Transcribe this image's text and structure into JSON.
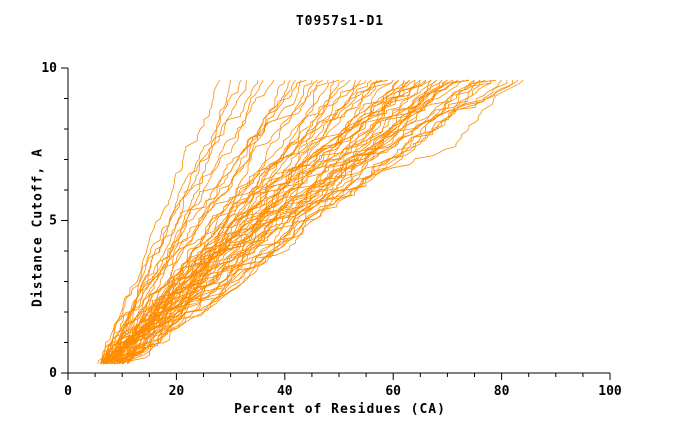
{
  "chart_data": {
    "type": "line",
    "title": "T0957s1-D1",
    "xlabel": "Percent of Residues (CA)",
    "ylabel": "Distance Cutoff, A",
    "xlim": [
      0,
      100
    ],
    "ylim": [
      0,
      10
    ],
    "x_ticks": [
      0,
      20,
      40,
      60,
      80,
      100
    ],
    "x_minor_step": 5,
    "y_ticks": [
      0,
      5,
      10
    ],
    "y_minor_step": 1,
    "line_color": "#ff8c00",
    "axis_color": "#000000",
    "background": "#ffffff",
    "legend": "none",
    "grid": false,
    "curve_y_start": 0.3,
    "curve_y_end": 9.6,
    "curves_note": "Each curve is [x_at_bottom, x_at_top, mid_fraction]: percent of residues at distance cutoff 0.3A, at 9.6A, and relative position of the x value reached at cutoff 5A.",
    "curves": [
      [
        6,
        28,
        0.5
      ],
      [
        5.5,
        30,
        0.55
      ],
      [
        6.5,
        32,
        0.48
      ],
      [
        7,
        33,
        0.52
      ],
      [
        6,
        35,
        0.45
      ],
      [
        8,
        36,
        0.5
      ],
      [
        7.5,
        38,
        0.42
      ],
      [
        6,
        40,
        0.55
      ],
      [
        9,
        41,
        0.5
      ],
      [
        7,
        42,
        0.46
      ],
      [
        8.5,
        43,
        0.52
      ],
      [
        6.5,
        44,
        0.4
      ],
      [
        10,
        45,
        0.5
      ],
      [
        7,
        46,
        0.44
      ],
      [
        8,
        47,
        0.55
      ],
      [
        6,
        48,
        0.38
      ],
      [
        9.5,
        49,
        0.5
      ],
      [
        7.5,
        50,
        0.45
      ],
      [
        11,
        51,
        0.52
      ],
      [
        6.5,
        52,
        0.4
      ],
      [
        8,
        53,
        0.48
      ],
      [
        7,
        54,
        0.55
      ],
      [
        10,
        55,
        0.42
      ],
      [
        6,
        56,
        0.5
      ],
      [
        9,
        57,
        0.45
      ],
      [
        7.5,
        58,
        0.52
      ],
      [
        8.5,
        58,
        0.38
      ],
      [
        6.5,
        59,
        0.48
      ],
      [
        11,
        60,
        0.55
      ],
      [
        7,
        60,
        0.42
      ],
      [
        9.5,
        61,
        0.5
      ],
      [
        6,
        61,
        0.45
      ],
      [
        8,
        62,
        0.52
      ],
      [
        7.5,
        62,
        0.4
      ],
      [
        10,
        63,
        0.48
      ],
      [
        6.5,
        63,
        0.55
      ],
      [
        9,
        64,
        0.42
      ],
      [
        7,
        64,
        0.5
      ],
      [
        8.5,
        65,
        0.45
      ],
      [
        6,
        65,
        0.52
      ],
      [
        11,
        66,
        0.4
      ],
      [
        7.5,
        66,
        0.48
      ],
      [
        9.5,
        67,
        0.55
      ],
      [
        6.5,
        67,
        0.42
      ],
      [
        8,
        68,
        0.5
      ],
      [
        7,
        68,
        0.45
      ],
      [
        10,
        69,
        0.52
      ],
      [
        6,
        69,
        0.4
      ],
      [
        9,
        70,
        0.48
      ],
      [
        7.5,
        70,
        0.55
      ],
      [
        8.5,
        71,
        0.42
      ],
      [
        6.5,
        71,
        0.5
      ],
      [
        11,
        72,
        0.45
      ],
      [
        7,
        72,
        0.52
      ],
      [
        9.5,
        73,
        0.4
      ],
      [
        6,
        74,
        0.48
      ],
      [
        8,
        74,
        0.55
      ],
      [
        7.5,
        75,
        0.42
      ],
      [
        10,
        75,
        0.5
      ],
      [
        6.5,
        76,
        0.45
      ],
      [
        9,
        76,
        0.52
      ],
      [
        7,
        77,
        0.4
      ],
      [
        8.5,
        78,
        0.48
      ],
      [
        6,
        78,
        0.55
      ],
      [
        11,
        79,
        0.42
      ],
      [
        7.5,
        80,
        0.5
      ],
      [
        9.5,
        81,
        0.45
      ],
      [
        6.5,
        82,
        0.52
      ],
      [
        8,
        83,
        0.4
      ],
      [
        7,
        84,
        0.48
      ]
    ]
  }
}
